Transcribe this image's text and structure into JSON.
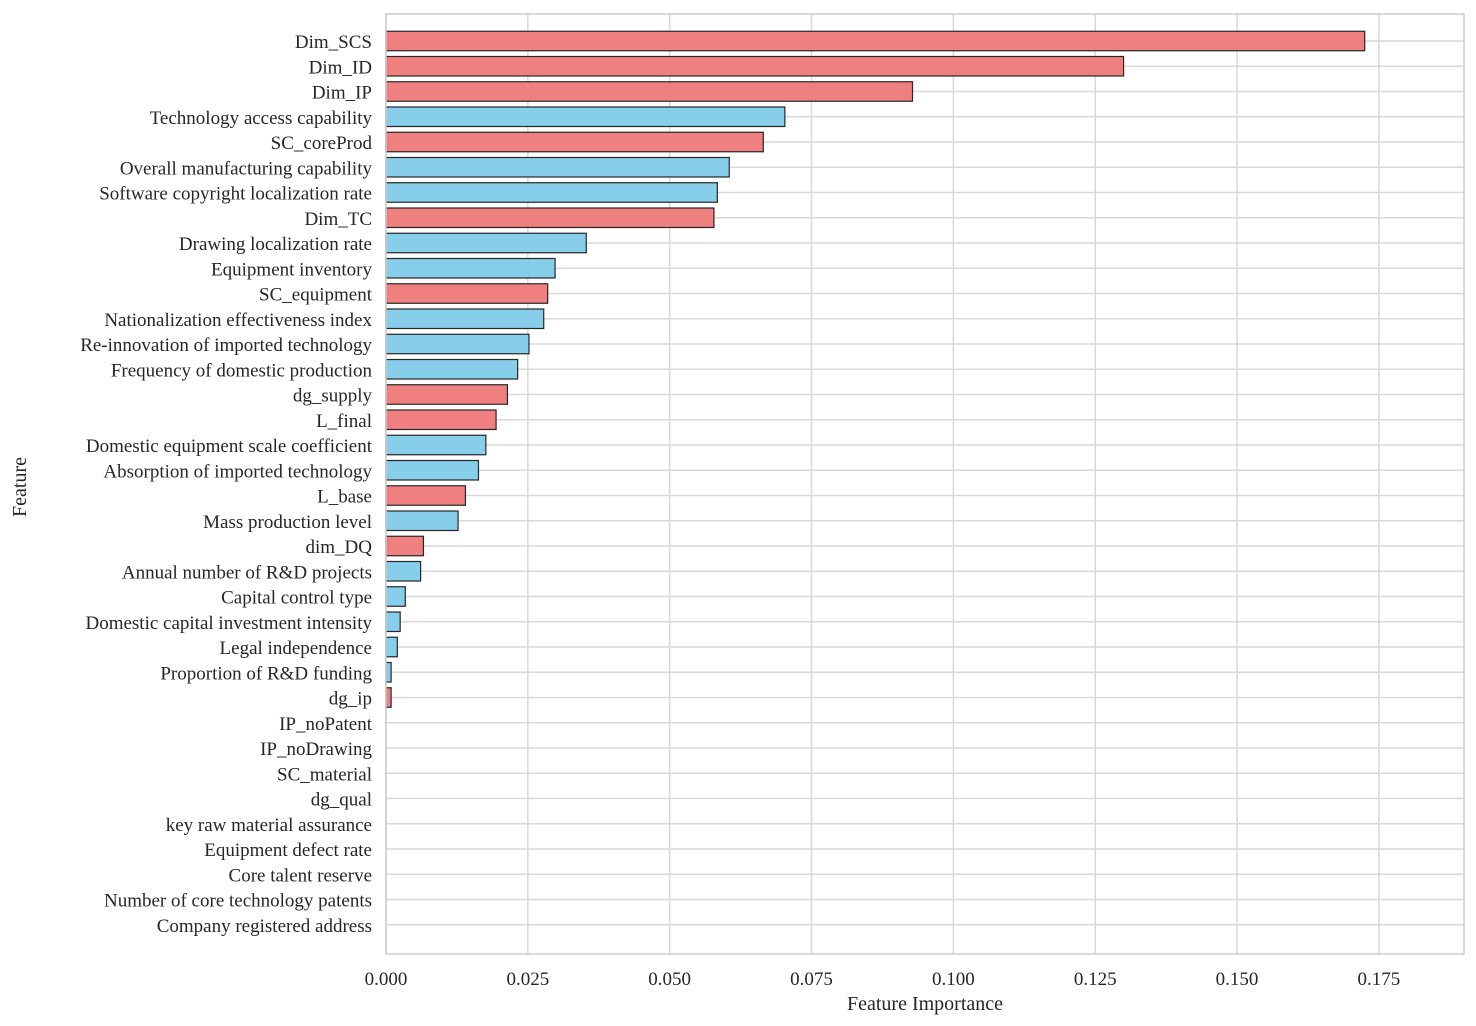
{
  "chart_data": {
    "type": "bar",
    "orientation": "horizontal",
    "xlabel": "Feature Importance",
    "ylabel": "Feature",
    "xlim": [
      0,
      0.19
    ],
    "xticks": [
      "0.000",
      "0.025",
      "0.050",
      "0.075",
      "0.100",
      "0.125",
      "0.150",
      "0.175"
    ],
    "grid": true,
    "legend": "none",
    "colors": {
      "red": "#f08080",
      "blue": "#87ceeb"
    },
    "categories": [
      "Dim_SCS",
      "Dim_ID",
      "Dim_IP",
      "Technology access capability",
      "SC_coreProd",
      "Overall manufacturing capability",
      "Software copyright localization rate",
      "Dim_TC",
      "Drawing localization rate",
      "Equipment inventory",
      "SC_equipment",
      "Nationalization effectiveness index",
      "Re-innovation of imported technology",
      "Frequency of domestic production",
      "dg_supply",
      "L_final",
      "Domestic equipment scale coefficient",
      "Absorption of imported technology",
      "L_base",
      "Mass production level",
      "dim_DQ",
      "Annual number of R&D projects",
      "Capital control type",
      "Domestic capital investment intensity",
      "Legal independence",
      "Proportion of R&D funding",
      "dg_ip",
      "IP_noPatent",
      "IP_noDrawing",
      "SC_material",
      "dg_qual",
      "key raw material assurance",
      "Equipment defect rate",
      "Core talent reserve",
      "Number of core technology patents",
      "Company registered address"
    ],
    "values": [
      0.1725,
      0.13,
      0.0928,
      0.0703,
      0.0665,
      0.0605,
      0.0584,
      0.0578,
      0.0353,
      0.0298,
      0.0285,
      0.0278,
      0.0252,
      0.0232,
      0.0214,
      0.0194,
      0.0176,
      0.0163,
      0.014,
      0.0127,
      0.0066,
      0.0061,
      0.0034,
      0.0025,
      0.002,
      0.0009,
      0.0009,
      0,
      0,
      0,
      0,
      0,
      0,
      0,
      0,
      0
    ],
    "bar_colors": [
      "red",
      "red",
      "red",
      "blue",
      "red",
      "blue",
      "blue",
      "red",
      "blue",
      "blue",
      "red",
      "blue",
      "blue",
      "blue",
      "red",
      "red",
      "blue",
      "blue",
      "red",
      "blue",
      "red",
      "blue",
      "blue",
      "blue",
      "blue",
      "blue",
      "red",
      "red",
      "red",
      "red",
      "red",
      "blue",
      "blue",
      "blue",
      "blue",
      "blue"
    ]
  }
}
